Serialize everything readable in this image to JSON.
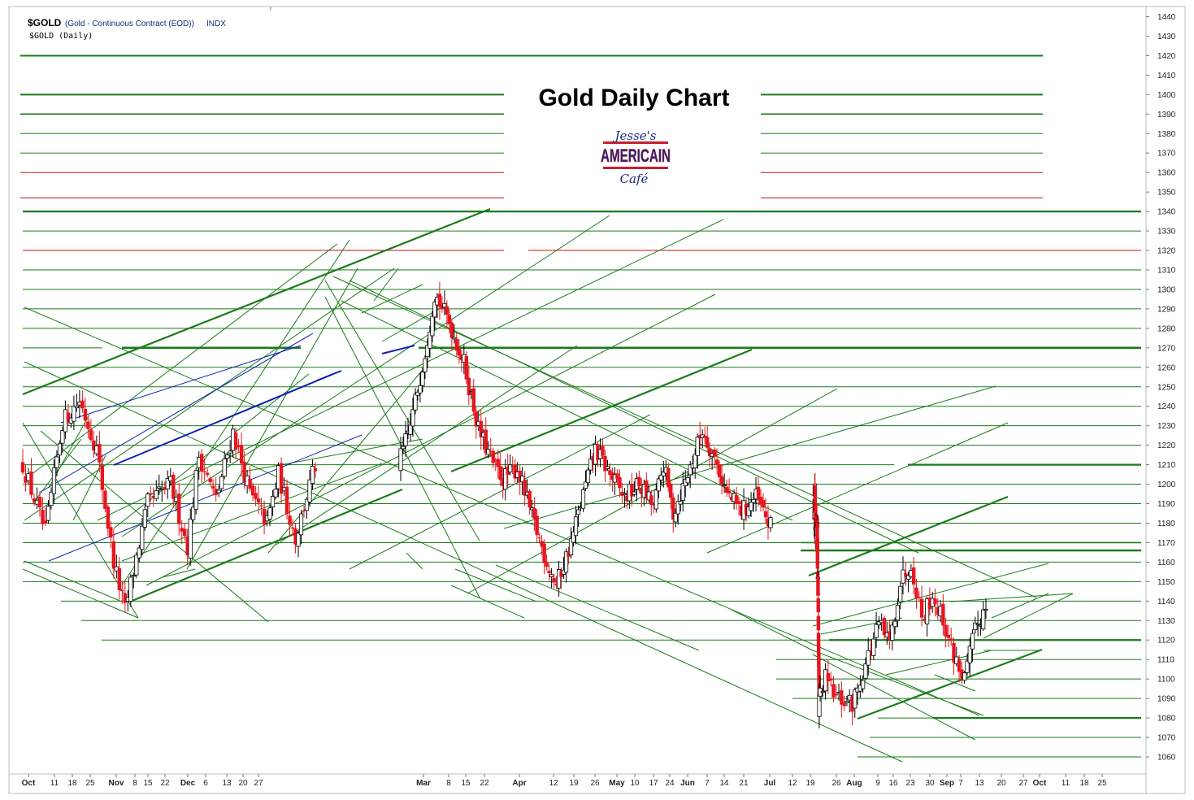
{
  "header": {
    "symbol": "$GOLD",
    "description": "(Gold - Continuous Contract (EOD))",
    "exchange": "INDX",
    "subtitle": "$GOLD (Daily)"
  },
  "logo": {
    "line1": "Jesse's",
    "line2": "AMERICAIN",
    "line3": "Café"
  },
  "colors": {
    "candle_up": "#000000",
    "candle_down": "#e8141e",
    "grid_green": "#1a7a1a",
    "grid_red": "#cc1111",
    "channel_blue": "#1020b0"
  },
  "chart_data": {
    "type": "candlestick",
    "title": "Gold Daily Chart",
    "ylim": [
      1053,
      1443
    ],
    "y_ticks": [
      1440,
      1430,
      1420,
      1410,
      1400,
      1390,
      1380,
      1370,
      1360,
      1350,
      1340,
      1330,
      1320,
      1310,
      1300,
      1290,
      1280,
      1270,
      1260,
      1250,
      1240,
      1230,
      1220,
      1210,
      1200,
      1190,
      1180,
      1170,
      1160,
      1150,
      1140,
      1130,
      1120,
      1110,
      1100,
      1090,
      1080,
      1070,
      1060
    ],
    "x_ticks": [
      {
        "label": "Oct",
        "bold": true
      },
      {
        "label": "11"
      },
      {
        "label": "18"
      },
      {
        "label": "25"
      },
      {
        "label": "Nov",
        "bold": true
      },
      {
        "label": "8"
      },
      {
        "label": "15"
      },
      {
        "label": "22"
      },
      {
        "label": "Dec",
        "bold": true
      },
      {
        "label": "6"
      },
      {
        "label": "13"
      },
      {
        "label": "20"
      },
      {
        "label": "27"
      },
      {
        "label": "Mar",
        "bold": true
      },
      {
        "label": "8"
      },
      {
        "label": "15"
      },
      {
        "label": "22"
      },
      {
        "label": "Apr",
        "bold": true
      },
      {
        "label": "12"
      },
      {
        "label": "19"
      },
      {
        "label": "26"
      },
      {
        "label": "May",
        "bold": true
      },
      {
        "label": "10"
      },
      {
        "label": "17"
      },
      {
        "label": "24"
      },
      {
        "label": "Jun",
        "bold": true
      },
      {
        "label": "7"
      },
      {
        "label": "14"
      },
      {
        "label": "21"
      },
      {
        "label": "Jul",
        "bold": true
      },
      {
        "label": "12"
      },
      {
        "label": "19"
      },
      {
        "label": "26"
      },
      {
        "label": "Aug",
        "bold": true
      },
      {
        "label": "9"
      },
      {
        "label": "16"
      },
      {
        "label": "23"
      },
      {
        "label": "30"
      },
      {
        "label": "Sep",
        "bold": true
      },
      {
        "label": "7"
      },
      {
        "label": "13"
      },
      {
        "label": "20"
      },
      {
        "label": "27"
      },
      {
        "label": "Oct",
        "bold": true
      },
      {
        "label": "11"
      },
      {
        "label": "18"
      },
      {
        "label": "25"
      }
    ],
    "anchors": [
      [
        0,
        1210
      ],
      [
        8,
        1175
      ],
      [
        14,
        1232
      ],
      [
        20,
        1243
      ],
      [
        26,
        1218
      ],
      [
        32,
        1160
      ],
      [
        36,
        1135
      ],
      [
        44,
        1190
      ],
      [
        52,
        1200
      ],
      [
        58,
        1168
      ],
      [
        62,
        1215
      ],
      [
        68,
        1192
      ],
      [
        74,
        1227
      ],
      [
        80,
        1195
      ],
      [
        86,
        1180
      ],
      [
        90,
        1205
      ],
      [
        96,
        1172
      ],
      [
        102,
        1205
      ],
      [
        108,
        1230
      ],
      [
        114,
        1268
      ],
      [
        118,
        1298
      ],
      [
        124,
        1283
      ],
      [
        130,
        1262
      ],
      [
        136,
        1228
      ],
      [
        142,
        1210
      ],
      [
        146,
        1203
      ],
      [
        152,
        1208
      ],
      [
        158,
        1183
      ],
      [
        164,
        1160
      ],
      [
        168,
        1148
      ],
      [
        174,
        1170
      ],
      [
        178,
        1190
      ],
      [
        184,
        1218
      ],
      [
        190,
        1205
      ],
      [
        196,
        1193
      ],
      [
        202,
        1200
      ],
      [
        208,
        1188
      ],
      [
        212,
        1210
      ],
      [
        216,
        1185
      ],
      [
        222,
        1205
      ],
      [
        228,
        1228
      ],
      [
        234,
        1210
      ],
      [
        238,
        1195
      ],
      [
        244,
        1186
      ],
      [
        250,
        1193
      ],
      [
        256,
        1178
      ],
      [
        260,
        1198
      ],
      [
        266,
        1175
      ],
      [
        272,
        1172
      ],
      [
        276,
        1185
      ],
      [
        282,
        1158
      ],
      [
        286,
        1140
      ],
      [
        290,
        1112
      ],
      [
        294,
        1085
      ],
      [
        298,
        1100
      ],
      [
        302,
        1090
      ],
      [
        308,
        1087
      ],
      [
        314,
        1112
      ],
      [
        318,
        1128
      ],
      [
        322,
        1118
      ],
      [
        326,
        1150
      ],
      [
        330,
        1160
      ],
      [
        334,
        1132
      ],
      [
        338,
        1143
      ],
      [
        342,
        1130
      ],
      [
        346,
        1112
      ],
      [
        350,
        1100
      ],
      [
        354,
        1125
      ],
      [
        358,
        1138
      ]
    ]
  }
}
